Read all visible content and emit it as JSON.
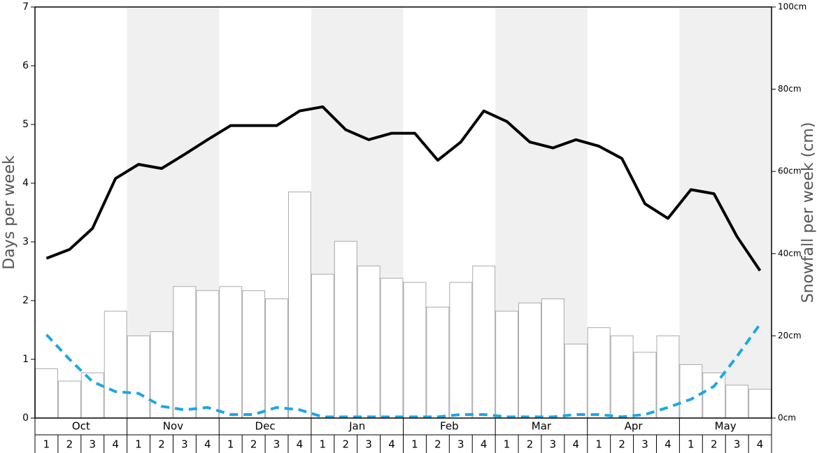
{
  "chart_data": {
    "type": "bar",
    "ylabel": "Days per week",
    "y2label": "Snowfall per week (cm)",
    "months": [
      "Oct",
      "Nov",
      "Dec",
      "Jan",
      "Feb",
      "Mar",
      "Apr",
      "May"
    ],
    "categories": [
      "1",
      "2",
      "3",
      "4",
      "1",
      "2",
      "3",
      "4",
      "1",
      "2",
      "3",
      "4",
      "1",
      "2",
      "3",
      "4",
      "1",
      "2",
      "3",
      "4",
      "1",
      "2",
      "3",
      "4",
      "1",
      "2",
      "3",
      "4",
      "1",
      "2",
      "3",
      "4"
    ],
    "ylim": [
      0,
      7
    ],
    "yticks": [
      0,
      1,
      2,
      3,
      4,
      5,
      6,
      7
    ],
    "y2lim": [
      0,
      100
    ],
    "y2ticks": [
      {
        "value": 0,
        "label": "0cm"
      },
      {
        "value": 20,
        "label": "20cm"
      },
      {
        "value": 40,
        "label": "40cm"
      },
      {
        "value": 60,
        "label": "60cm"
      },
      {
        "value": 80,
        "label": "80cm"
      },
      {
        "value": 100,
        "label": "100cm"
      }
    ],
    "series": [
      {
        "type": "bar",
        "axis": "y2",
        "color": "#ffffff",
        "values": [
          12,
          9,
          11,
          26,
          20,
          21,
          32,
          31,
          32,
          31,
          29,
          55,
          35,
          43,
          37,
          34,
          33,
          27,
          33,
          37,
          26,
          28,
          29,
          18,
          22,
          20,
          16,
          20,
          13,
          11,
          8,
          7
        ]
      },
      {
        "type": "line",
        "color": "#000000",
        "values": [
          2.72,
          2.87,
          3.23,
          4.08,
          4.32,
          4.25,
          4.49,
          4.74,
          4.98,
          4.98,
          4.98,
          5.23,
          5.3,
          4.91,
          4.74,
          4.85,
          4.85,
          4.39,
          4.7,
          5.23,
          5.05,
          4.7,
          4.6,
          4.74,
          4.63,
          4.42,
          3.65,
          3.4,
          3.89,
          3.82,
          3.09,
          2.51
        ]
      },
      {
        "type": "dashed",
        "color": "#1ea7e6",
        "values": [
          1.42,
          1.0,
          0.62,
          0.45,
          0.42,
          0.2,
          0.14,
          0.18,
          0.06,
          0.06,
          0.18,
          0.14,
          0.02,
          0.02,
          0.02,
          0.02,
          0.02,
          0.02,
          0.06,
          0.06,
          0.02,
          0.02,
          0.02,
          0.06,
          0.06,
          0.02,
          0.06,
          0.18,
          0.32,
          0.54,
          1.05,
          1.6
        ]
      }
    ]
  }
}
